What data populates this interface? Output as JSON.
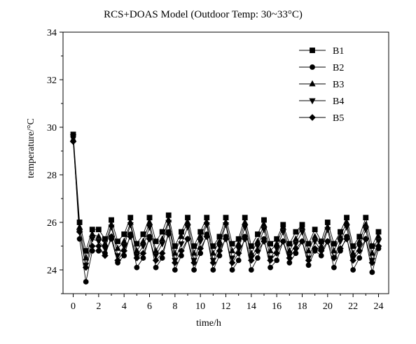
{
  "chart_data": {
    "type": "line",
    "title": "RCS+DOAS Model (Outdoor Temp: 30~33°C)",
    "xlabel": "time/h",
    "ylabel": "temperature/°C",
    "xlim": [
      -0.8,
      24.8
    ],
    "ylim": [
      23,
      34
    ],
    "xticks": [
      0,
      2,
      4,
      6,
      8,
      10,
      12,
      14,
      16,
      18,
      20,
      22,
      24
    ],
    "yticks": [
      24,
      26,
      28,
      30,
      32,
      34
    ],
    "grid": false,
    "legend_position": "top-right",
    "x": [
      0,
      0.5,
      1,
      1.5,
      2,
      2.5,
      3,
      3.5,
      4,
      4.5,
      5,
      5.5,
      6,
      6.5,
      7,
      7.5,
      8,
      8.5,
      9,
      9.5,
      10,
      10.5,
      11,
      11.5,
      12,
      12.5,
      13,
      13.5,
      14,
      14.5,
      15,
      15.5,
      16,
      16.5,
      17,
      17.5,
      18,
      18.5,
      19,
      19.5,
      20,
      20.5,
      21,
      21.5,
      22,
      22.5,
      23,
      23.5,
      24
    ],
    "series": [
      {
        "name": "B1",
        "marker": "square",
        "values": [
          29.7,
          26.0,
          24.8,
          25.7,
          25.7,
          25.3,
          26.1,
          25.2,
          25.5,
          26.2,
          25.1,
          25.5,
          26.2,
          25.2,
          25.6,
          26.3,
          25.0,
          25.6,
          26.2,
          25.0,
          25.6,
          26.2,
          25.0,
          25.4,
          26.2,
          25.1,
          25.3,
          26.2,
          25.0,
          25.5,
          26.1,
          25.1,
          25.3,
          25.9,
          25.1,
          25.6,
          25.9,
          25.1,
          25.7,
          25.2,
          26.0,
          25.1,
          25.6,
          26.2,
          25.0,
          25.4,
          26.2,
          25.0,
          25.6
        ]
      },
      {
        "name": "B2",
        "marker": "circle",
        "values": [
          29.6,
          25.3,
          23.5,
          24.8,
          24.8,
          24.7,
          25.3,
          24.3,
          24.6,
          25.5,
          24.1,
          24.5,
          25.4,
          24.1,
          24.5,
          25.6,
          24.0,
          24.6,
          25.3,
          24.0,
          24.7,
          25.5,
          24.0,
          24.6,
          25.4,
          24.0,
          24.4,
          25.4,
          24.0,
          24.5,
          25.3,
          24.1,
          24.4,
          25.2,
          24.3,
          24.7,
          25.2,
          24.2,
          24.8,
          24.6,
          25.2,
          24.1,
          24.8,
          25.4,
          24.0,
          24.5,
          25.3,
          23.9,
          24.9
        ]
      },
      {
        "name": "B3",
        "marker": "triangle",
        "values": [
          29.5,
          25.8,
          24.5,
          25.5,
          25.4,
          25.1,
          25.9,
          24.9,
          25.2,
          26.0,
          24.8,
          25.2,
          26.0,
          24.8,
          25.3,
          26.1,
          24.7,
          25.4,
          26.0,
          24.7,
          25.4,
          26.0,
          24.7,
          25.2,
          26.0,
          24.8,
          25.1,
          26.0,
          24.7,
          25.2,
          25.9,
          24.8,
          25.1,
          25.8,
          24.8,
          25.3,
          25.8,
          24.8,
          25.4,
          25.0,
          25.8,
          24.8,
          25.4,
          26.0,
          24.7,
          25.2,
          25.9,
          24.7,
          25.4
        ]
      },
      {
        "name": "B4",
        "marker": "triangle-down",
        "values": [
          29.6,
          25.6,
          24.2,
          25.3,
          25.2,
          24.9,
          25.8,
          24.6,
          25.0,
          25.9,
          24.6,
          25.0,
          25.8,
          24.6,
          25.1,
          26.0,
          24.4,
          25.1,
          25.8,
          24.4,
          25.2,
          25.9,
          24.4,
          25.0,
          25.9,
          24.5,
          24.9,
          25.8,
          24.5,
          25.0,
          25.7,
          24.5,
          24.9,
          25.6,
          24.6,
          25.1,
          25.6,
          24.5,
          25.2,
          24.8,
          25.7,
          24.5,
          25.2,
          25.8,
          24.5,
          25.0,
          25.7,
          24.4,
          25.2
        ]
      },
      {
        "name": "B5",
        "marker": "diamond",
        "values": [
          29.4,
          25.6,
          24.1,
          25.0,
          25.0,
          24.6,
          25.4,
          24.4,
          24.8,
          25.4,
          24.5,
          24.7,
          25.3,
          24.4,
          24.7,
          25.5,
          24.3,
          24.8,
          25.3,
          24.3,
          24.9,
          25.4,
          24.3,
          24.8,
          25.3,
          24.3,
          24.7,
          25.3,
          24.4,
          24.8,
          25.2,
          24.4,
          24.7,
          25.2,
          24.5,
          24.9,
          25.2,
          24.4,
          24.9,
          24.8,
          25.2,
          24.5,
          24.9,
          25.3,
          24.4,
          24.8,
          25.3,
          24.3,
          25.0
        ]
      }
    ]
  }
}
